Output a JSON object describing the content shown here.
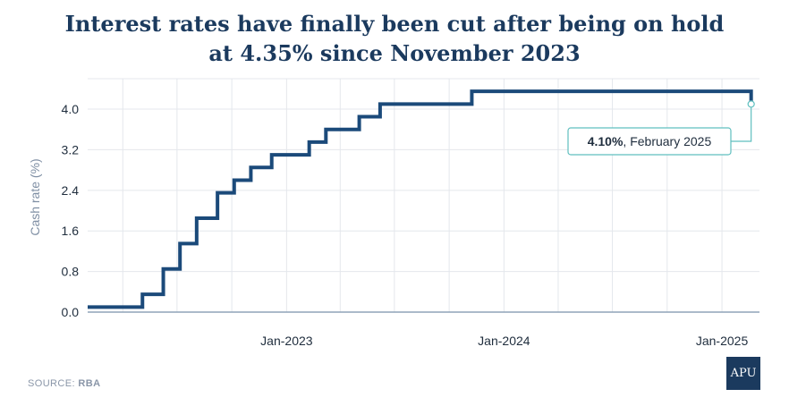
{
  "title_lines": [
    "Interest rates have finally been cut after being on hold",
    "at 4.35% since November 2023"
  ],
  "source": {
    "label": "SOURCE:",
    "value": "RBA"
  },
  "logo_text": "APU",
  "annotation": {
    "value": "4.10%",
    "suffix": ", February 2025"
  },
  "colors": {
    "line": "#1b4a7a",
    "grid": "#e4e7ec",
    "baseline": "#8fa3b8",
    "callout": "#5fbfbf",
    "title": "#1b3a5e",
    "ylabel": "#7f8fa4"
  },
  "chart_data": {
    "type": "line",
    "step": true,
    "title": "Interest rates have finally been cut after being on hold at 4.35% since November 2023",
    "xlabel": "",
    "ylabel": "Cash rate (%)",
    "ylim": [
      0,
      4.6
    ],
    "xlim": [
      "2022-02-01",
      "2025-03-05"
    ],
    "yticks": [
      0.0,
      0.8,
      1.6,
      2.4,
      3.2,
      4.0
    ],
    "ytick_labels": [
      "0.0",
      "0.8",
      "1.6",
      "2.4",
      "3.2",
      "4.0"
    ],
    "xticks": [
      "2023-01-01",
      "2024-01-01",
      "2025-01-01"
    ],
    "xtick_labels": [
      "Jan-2023",
      "Jan-2024",
      "Jan-2025"
    ],
    "grid": true,
    "series": [
      {
        "name": "",
        "points": [
          {
            "date": "2022-02-01",
            "value": 0.1
          },
          {
            "date": "2022-05-04",
            "value": 0.35
          },
          {
            "date": "2022-06-08",
            "value": 0.85
          },
          {
            "date": "2022-07-06",
            "value": 1.35
          },
          {
            "date": "2022-08-03",
            "value": 1.85
          },
          {
            "date": "2022-09-07",
            "value": 2.35
          },
          {
            "date": "2022-10-05",
            "value": 2.6
          },
          {
            "date": "2022-11-02",
            "value": 2.85
          },
          {
            "date": "2022-12-07",
            "value": 3.1
          },
          {
            "date": "2023-02-08",
            "value": 3.35
          },
          {
            "date": "2023-03-08",
            "value": 3.6
          },
          {
            "date": "2023-05-03",
            "value": 3.85
          },
          {
            "date": "2023-06-07",
            "value": 4.1
          },
          {
            "date": "2023-11-08",
            "value": 4.35
          },
          {
            "date": "2025-02-19",
            "value": 4.1
          }
        ]
      }
    ],
    "annotations": [
      {
        "date": "2025-02-19",
        "value": 4.1,
        "text": "4.10%, February 2025"
      }
    ]
  }
}
